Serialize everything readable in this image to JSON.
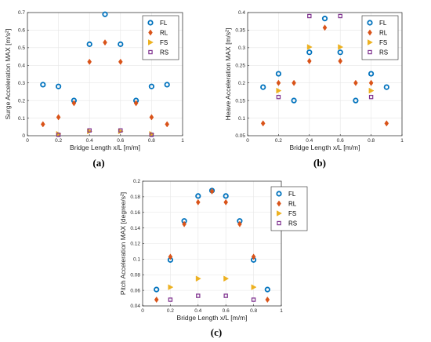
{
  "colors": {
    "FL": "#0072BD",
    "RL": "#D95319",
    "FS": "#EDB120",
    "RS": "#7E2F8E"
  },
  "markers": {
    "FL": "circle",
    "RL": "diamond",
    "FS": "triangle-right",
    "RS": "square"
  },
  "chart_data": [
    {
      "type": "scatter",
      "panel_label": "(a)",
      "xlabel": "Bridge Length x/L [m/m]",
      "ylabel": "Surge Acceleration MAX [m/s²]",
      "xlim": [
        0,
        1
      ],
      "ylim": [
        0,
        0.7
      ],
      "xticks": [
        "0",
        "0.2",
        "0.4",
        "0.6",
        "0.8",
        "1"
      ],
      "xtick_values": [
        0,
        0.2,
        0.4,
        0.6,
        0.8,
        1
      ],
      "yticks": [
        "0",
        "0.1",
        "0.2",
        "0.3",
        "0.4",
        "0.5",
        "0.6",
        "0.7"
      ],
      "ytick_values": [
        0,
        0.1,
        0.2,
        0.3,
        0.4,
        0.5,
        0.6,
        0.7
      ],
      "grid": true,
      "legend_position": "top-right",
      "series": [
        {
          "name": "FL",
          "x": [
            0.1,
            0.2,
            0.3,
            0.4,
            0.5,
            0.6,
            0.7,
            0.8,
            0.9
          ],
          "y": [
            0.29,
            0.28,
            0.2,
            0.52,
            0.69,
            0.52,
            0.2,
            0.28,
            0.29
          ]
        },
        {
          "name": "RL",
          "x": [
            0.1,
            0.2,
            0.3,
            0.4,
            0.5,
            0.6,
            0.7,
            0.8,
            0.9
          ],
          "y": [
            0.065,
            0.105,
            0.185,
            0.42,
            0.53,
            0.42,
            0.185,
            0.105,
            0.065
          ]
        },
        {
          "name": "FS",
          "x": [
            0.2,
            0.4,
            0.6,
            0.8
          ],
          "y": [
            0.01,
            0.025,
            0.025,
            0.01
          ]
        },
        {
          "name": "RS",
          "x": [
            0.2,
            0.4,
            0.6,
            0.8
          ],
          "y": [
            0.005,
            0.03,
            0.03,
            0.005
          ]
        }
      ]
    },
    {
      "type": "scatter",
      "panel_label": "(b)",
      "xlabel": "Bridge Length x/L [m/m]",
      "ylabel": "Heave Acceleration MAX [m/s²]",
      "xlim": [
        0,
        1
      ],
      "ylim": [
        0.05,
        0.4
      ],
      "xticks": [
        "0",
        "0.2",
        "0.4",
        "0.6",
        "0.8",
        "1"
      ],
      "xtick_values": [
        0,
        0.2,
        0.4,
        0.6,
        0.8,
        1
      ],
      "yticks": [
        "0.05",
        "0.1",
        "0.15",
        "0.2",
        "0.25",
        "0.3",
        "0.35",
        "0.4"
      ],
      "ytick_values": [
        0.05,
        0.1,
        0.15,
        0.2,
        0.25,
        0.3,
        0.35,
        0.4
      ],
      "grid": true,
      "legend_position": "top-right",
      "series": [
        {
          "name": "FL",
          "x": [
            0.1,
            0.2,
            0.3,
            0.4,
            0.5,
            0.6,
            0.7,
            0.8,
            0.9
          ],
          "y": [
            0.188,
            0.226,
            0.15,
            0.287,
            0.383,
            0.287,
            0.15,
            0.226,
            0.188
          ]
        },
        {
          "name": "RL",
          "x": [
            0.1,
            0.2,
            0.3,
            0.4,
            0.5,
            0.6,
            0.7,
            0.8,
            0.9
          ],
          "y": [
            0.085,
            0.2,
            0.2,
            0.262,
            0.357,
            0.262,
            0.2,
            0.2,
            0.085
          ]
        },
        {
          "name": "FS",
          "x": [
            0.2,
            0.4,
            0.6,
            0.8
          ],
          "y": [
            0.178,
            0.302,
            0.302,
            0.178
          ]
        },
        {
          "name": "RS",
          "x": [
            0.2,
            0.4,
            0.6,
            0.8
          ],
          "y": [
            0.16,
            0.39,
            0.39,
            0.16
          ]
        }
      ]
    },
    {
      "type": "scatter",
      "panel_label": "(c)",
      "xlabel": "Bridge Length x/L [m/m]",
      "ylabel": "Pitch Acceleration MAX [degree/s²]",
      "xlim": [
        0,
        1
      ],
      "ylim": [
        0.04,
        0.2
      ],
      "xticks": [
        "0",
        "0.2",
        "0.4",
        "0.6",
        "0.8",
        "1"
      ],
      "xtick_values": [
        0,
        0.2,
        0.4,
        0.6,
        0.8,
        1
      ],
      "yticks": [
        "0.04",
        "0.06",
        "0.08",
        "0.1",
        "0.12",
        "0.14",
        "0.16",
        "0.18",
        "0.2"
      ],
      "ytick_values": [
        0.04,
        0.06,
        0.08,
        0.1,
        0.12,
        0.14,
        0.16,
        0.18,
        0.2
      ],
      "grid": true,
      "legend_position": "top-right",
      "series": [
        {
          "name": "FL",
          "x": [
            0.1,
            0.2,
            0.3,
            0.4,
            0.5,
            0.6,
            0.7,
            0.8,
            0.9
          ],
          "y": [
            0.061,
            0.099,
            0.149,
            0.181,
            0.188,
            0.181,
            0.149,
            0.099,
            0.061
          ]
        },
        {
          "name": "RL",
          "x": [
            0.1,
            0.2,
            0.3,
            0.4,
            0.5,
            0.6,
            0.7,
            0.8,
            0.9
          ],
          "y": [
            0.048,
            0.103,
            0.145,
            0.173,
            0.187,
            0.173,
            0.145,
            0.103,
            0.048
          ]
        },
        {
          "name": "FS",
          "x": [
            0.2,
            0.4,
            0.6,
            0.8
          ],
          "y": [
            0.064,
            0.075,
            0.075,
            0.064
          ]
        },
        {
          "name": "RS",
          "x": [
            0.2,
            0.4,
            0.6,
            0.8
          ],
          "y": [
            0.048,
            0.053,
            0.053,
            0.048
          ]
        }
      ]
    }
  ]
}
